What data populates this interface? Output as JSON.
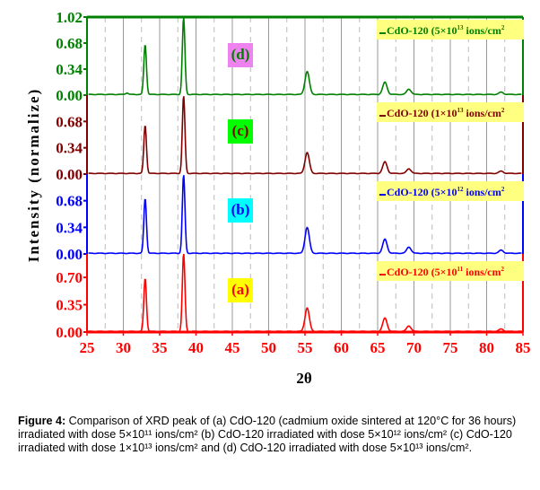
{
  "chart_data": {
    "type": "line",
    "title": "",
    "xlabel": "2θ",
    "ylabel": "Intensity (normalize)",
    "xlim": [
      25,
      85
    ],
    "xticks": [
      "25",
      "30",
      "35",
      "40",
      "45",
      "50",
      "55",
      "60",
      "65",
      "70",
      "75",
      "80",
      "85"
    ],
    "grid": "vertical",
    "panels": [
      {
        "label": "(d)",
        "label_bg": "#ee82ee",
        "color": "#008000",
        "legend": "CdO-120 (5×10",
        "legend_exp": "13",
        "legend_unit": " ions/cm",
        "legend_unit_exp": "2",
        "yticks": [
          "0.00",
          "0.34",
          "0.68",
          "1.02"
        ],
        "ylim": [
          0,
          1.02
        ],
        "peaks": [
          [
            30.5,
            0.02
          ],
          [
            33.0,
            0.65
          ],
          [
            38.3,
            1.0
          ],
          [
            55.3,
            0.3
          ],
          [
            66.0,
            0.16
          ],
          [
            69.3,
            0.07
          ],
          [
            82.0,
            0.03
          ]
        ]
      },
      {
        "label": "(c)",
        "label_bg": "#00ff00",
        "color": "#800000",
        "legend": "CdO-120 (1×10",
        "legend_exp": "13",
        "legend_unit": " ions/cm",
        "legend_unit_exp": "2",
        "yticks": [
          "0.00",
          "0.34",
          "0.68"
        ],
        "ylim": [
          0,
          1.02
        ],
        "peaks": [
          [
            33.0,
            0.62
          ],
          [
            38.3,
            1.0
          ],
          [
            55.3,
            0.27
          ],
          [
            66.0,
            0.15
          ],
          [
            69.3,
            0.06
          ],
          [
            82.0,
            0.03
          ]
        ]
      },
      {
        "label": "(b)",
        "label_bg": "#00ffff",
        "color": "#0000ff",
        "legend": "CdO-120 (5×10",
        "legend_exp": "12",
        "legend_unit": " ions/cm",
        "legend_unit_exp": "2",
        "yticks": [
          "0.00",
          "0.34",
          "0.68"
        ],
        "ylim": [
          0,
          1.02
        ],
        "peaks": [
          [
            33.0,
            0.7
          ],
          [
            38.3,
            1.0
          ],
          [
            55.3,
            0.33
          ],
          [
            66.0,
            0.18
          ],
          [
            69.3,
            0.08
          ],
          [
            82.0,
            0.04
          ]
        ]
      },
      {
        "label": "(a)",
        "label_bg": "#ffff00",
        "color": "#ff0000",
        "legend": "CdO-120 (5×10",
        "legend_exp": "11",
        "legend_unit": " ions/cm",
        "legend_unit_exp": "2",
        "yticks": [
          "0.00",
          "0.35",
          "0.70"
        ],
        "ylim": [
          0,
          1.0
        ],
        "peaks": [
          [
            33.0,
            0.68
          ],
          [
            38.3,
            1.0
          ],
          [
            55.3,
            0.3
          ],
          [
            66.0,
            0.17
          ],
          [
            69.3,
            0.07
          ],
          [
            82.0,
            0.03
          ]
        ]
      }
    ]
  },
  "caption": {
    "figure_label": "Figure 4:",
    "text": " Comparison of XRD peak of (a) CdO-120 (cadmium oxide sintered at 120°C for 36 hours) irradiated with dose 5×10¹¹ ions/cm² (b) CdO-120 irradiated with dose 5×10¹² ions/cm² (c) CdO-120 irradiated with dose 1×10¹³ ions/cm² and (d) CdO-120 irradiated with dose 5×10¹³ ions/cm²."
  }
}
